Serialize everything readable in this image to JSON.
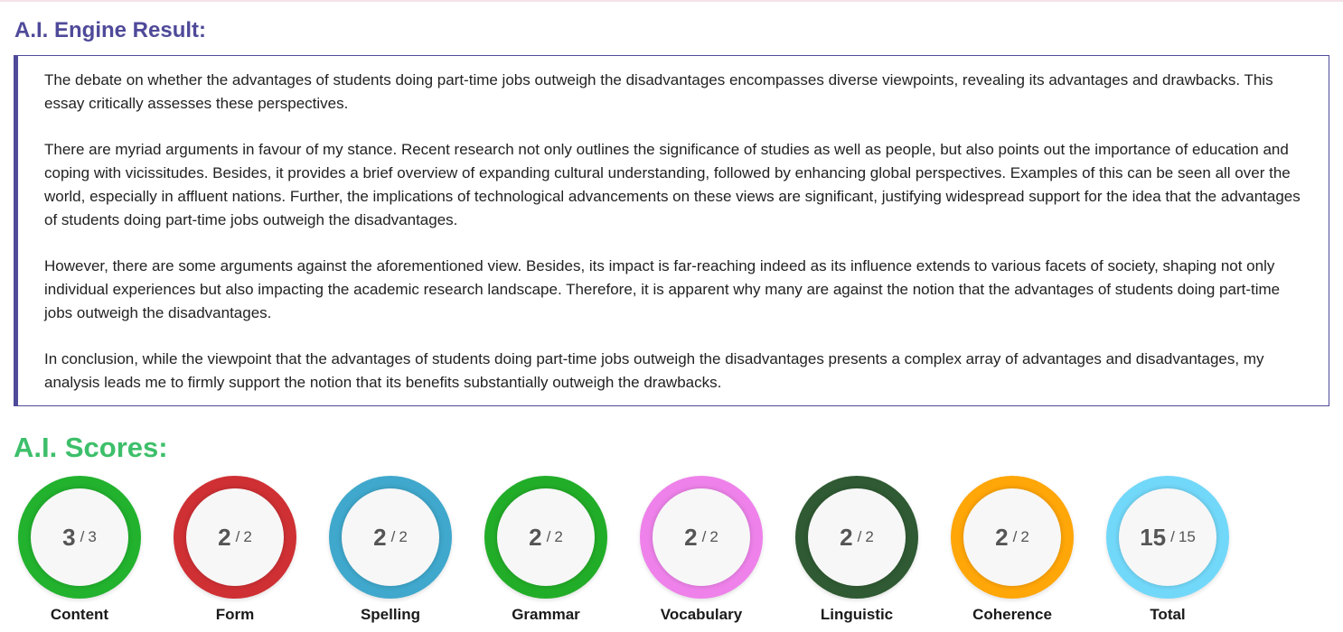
{
  "result": {
    "heading": "A.I. Engine Result:",
    "paragraphs": [
      "The debate on whether the advantages of students doing part-time jobs outweigh the disadvantages encompasses diverse viewpoints, revealing its advantages and drawbacks. This essay critically assesses these perspectives.",
      "There are myriad arguments in favour of my stance. Recent research not only outlines the significance of studies as well as people, but also points out the importance of education and coping with vicissitudes. Besides, it provides a brief overview of expanding cultural understanding, followed by enhancing global perspectives. Examples of this can be seen all over the world, especially in affluent nations. Further, the implications of technological advancements on these views are significant, justifying widespread support for the idea that the advantages of students doing part-time jobs outweigh the disadvantages.",
      "However, there are some arguments against the aforementioned view. Besides, its impact is far-reaching indeed as its influence extends to various facets of society, shaping not only individual experiences but also impacting the academic research landscape. Therefore, it is apparent why many are against the notion that the advantages of students doing part-time jobs outweigh the disadvantages.",
      "In conclusion, while the viewpoint that the advantages of students doing part-time jobs outweigh the disadvantages presents a complex array of advantages and disadvantages, my analysis leads me to firmly support the notion that its benefits substantially outweigh the drawbacks."
    ]
  },
  "scores": {
    "heading": "A.I. Scores:",
    "separator": "/",
    "items": [
      {
        "label": "Content",
        "value": "3",
        "max": "3",
        "color": "#22b22e"
      },
      {
        "label": "Form",
        "value": "2",
        "max": "2",
        "color": "#cf3034"
      },
      {
        "label": "Spelling",
        "value": "2",
        "max": "2",
        "color": "#3fa8cc"
      },
      {
        "label": "Grammar",
        "value": "2",
        "max": "2",
        "color": "#22ad28"
      },
      {
        "label": "Vocabulary",
        "value": "2",
        "max": "2",
        "color": "#ee82ea"
      },
      {
        "label": "Linguistic",
        "value": "2",
        "max": "2",
        "color": "#2f5a33"
      },
      {
        "label": "Coherence",
        "value": "2",
        "max": "2",
        "color": "#ffa608"
      },
      {
        "label": "Total",
        "value": "15",
        "max": "15",
        "color": "#72d8f9"
      }
    ]
  }
}
